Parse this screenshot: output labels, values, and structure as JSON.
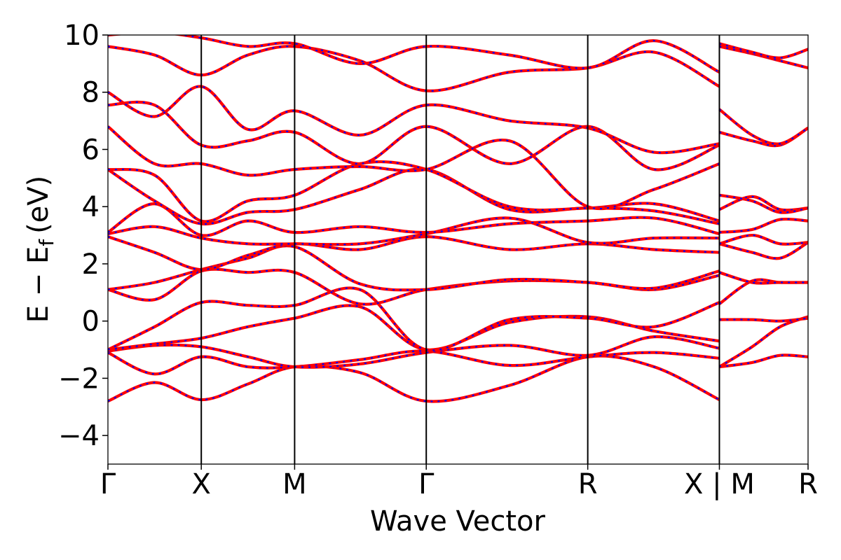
{
  "chart_data": {
    "type": "line",
    "xlabel": "Wave Vector",
    "ylabel": "E − E",
    "ylabel_subscript": "f",
    "ylabel_unit": "(eV)",
    "ylim": [
      -5,
      10
    ],
    "yticks": [
      {
        "value": -4,
        "label": "−4"
      },
      {
        "value": -2,
        "label": "−2"
      },
      {
        "value": 0,
        "label": "0"
      },
      {
        "value": 2,
        "label": "2"
      },
      {
        "value": 4,
        "label": "4"
      },
      {
        "value": 6,
        "label": "6"
      },
      {
        "value": 8,
        "label": "8"
      },
      {
        "value": 10,
        "label": "10"
      }
    ],
    "k_path": {
      "xlim": [
        0,
        7.5
      ],
      "points": [
        {
          "label": "Γ",
          "k": 0.0
        },
        {
          "label": "X",
          "k": 1.0
        },
        {
          "label": "M",
          "k": 2.0
        },
        {
          "label": "Γ",
          "k": 3.41
        },
        {
          "label": "R",
          "k": 5.14
        },
        {
          "label": "X | M",
          "k": 6.55
        },
        {
          "label": "R",
          "k": 7.5
        }
      ]
    },
    "colors": {
      "solid_line": "#ff0000",
      "dashed_line": "#0000ff"
    },
    "series_style": "red solid bands overlaid with blue dashed bands",
    "bands": [
      {
        "k": [
          0,
          0.5,
          1.0,
          1.5,
          2.0,
          2.7,
          3.41,
          4.3,
          5.14,
          5.85,
          6.55
        ],
        "e": [
          -2.8,
          -2.15,
          -2.75,
          -2.2,
          -1.6,
          -1.8,
          -2.8,
          -2.25,
          -1.25,
          -1.6,
          -2.75
        ]
      },
      {
        "k": [
          0,
          0.5,
          1.0,
          1.5,
          2.0,
          2.7,
          3.41,
          4.3,
          5.14,
          5.85,
          6.55
        ],
        "e": [
          -1.1,
          -1.85,
          -1.25,
          -1.6,
          -1.6,
          -1.35,
          -1.05,
          -1.55,
          -1.25,
          -1.1,
          -1.3
        ]
      },
      {
        "k": [
          0,
          0.5,
          1.0,
          1.5,
          2.0,
          2.7,
          3.41,
          4.3,
          5.14,
          5.85,
          6.55
        ],
        "e": [
          -1.05,
          -0.85,
          -0.9,
          -1.25,
          -1.6,
          -1.5,
          -1.1,
          -0.85,
          -1.2,
          -0.55,
          -0.95
        ]
      },
      {
        "k": [
          0,
          0.5,
          1.0,
          1.5,
          2.0,
          2.7,
          3.41,
          4.3,
          5.14,
          5.85,
          6.55
        ],
        "e": [
          -1.0,
          -0.8,
          -0.6,
          -0.2,
          0.1,
          0.5,
          -1.0,
          -0.05,
          0.15,
          -0.35,
          -0.7
        ]
      },
      {
        "k": [
          0,
          0.5,
          1.0,
          1.5,
          2.0,
          2.7,
          3.41,
          4.3,
          5.14,
          5.85,
          6.55
        ],
        "e": [
          -1.0,
          -0.2,
          0.65,
          0.55,
          0.55,
          1.1,
          -1.0,
          0.05,
          0.1,
          -0.2,
          0.65
        ]
      },
      {
        "k": [
          0,
          0.5,
          1.0,
          1.5,
          2.0,
          2.7,
          3.41,
          4.3,
          5.14,
          5.85,
          6.55
        ],
        "e": [
          1.1,
          0.75,
          1.75,
          1.7,
          1.7,
          0.6,
          1.1,
          1.4,
          1.35,
          1.1,
          1.6
        ]
      },
      {
        "k": [
          0,
          0.5,
          1.0,
          1.5,
          2.0,
          2.7,
          3.41,
          4.3,
          5.14,
          5.85,
          6.55
        ],
        "e": [
          1.1,
          1.35,
          1.8,
          2.2,
          2.6,
          1.3,
          1.1,
          1.45,
          1.35,
          1.15,
          1.75
        ]
      },
      {
        "k": [
          0,
          0.5,
          1.0,
          1.5,
          2.0,
          2.7,
          3.41,
          4.3,
          5.14,
          5.85,
          6.55
        ],
        "e": [
          2.95,
          2.4,
          1.8,
          2.3,
          2.7,
          2.5,
          2.95,
          2.5,
          2.7,
          2.5,
          2.4
        ]
      },
      {
        "k": [
          0,
          0.5,
          1.0,
          1.5,
          2.0,
          2.7,
          3.41,
          4.3,
          5.14,
          5.85,
          6.55
        ],
        "e": [
          3.05,
          3.3,
          2.9,
          2.7,
          2.7,
          2.7,
          3.05,
          3.6,
          2.75,
          2.9,
          2.9
        ]
      },
      {
        "k": [
          0,
          0.5,
          1.0,
          1.5,
          2.0,
          2.7,
          3.41,
          4.3,
          5.14,
          5.85,
          6.55
        ],
        "e": [
          3.1,
          4.1,
          3.0,
          3.5,
          3.1,
          3.3,
          3.1,
          3.4,
          3.5,
          3.6,
          3.05
        ]
      },
      {
        "k": [
          0,
          0.5,
          1.0,
          1.5,
          2.0,
          2.7,
          3.41,
          4.3,
          5.14,
          5.85,
          6.55
        ],
        "e": [
          5.3,
          4.2,
          3.4,
          3.8,
          3.9,
          4.6,
          5.3,
          3.9,
          3.95,
          3.85,
          3.4
        ]
      },
      {
        "k": [
          0,
          0.5,
          1.0,
          1.5,
          2.0,
          2.7,
          3.41,
          4.3,
          5.14,
          5.85,
          6.55
        ],
        "e": [
          5.3,
          5.1,
          3.5,
          4.2,
          4.4,
          5.5,
          5.3,
          4.0,
          3.95,
          4.1,
          3.5
        ]
      },
      {
        "k": [
          0,
          0.5,
          1.0,
          1.5,
          2.0,
          2.7,
          3.41,
          4.3,
          5.14,
          5.85,
          6.55
        ],
        "e": [
          6.8,
          5.5,
          5.5,
          5.1,
          5.3,
          5.4,
          5.3,
          6.3,
          4.0,
          4.6,
          5.5
        ]
      },
      {
        "k": [
          0,
          0.5,
          1.0,
          1.5,
          2.0,
          2.7,
          3.41,
          4.3,
          5.14,
          5.85,
          6.55
        ],
        "e": [
          7.55,
          7.55,
          6.15,
          6.3,
          6.6,
          5.5,
          6.8,
          5.5,
          6.8,
          5.3,
          6.15
        ]
      },
      {
        "k": [
          0,
          0.5,
          1.0,
          1.5,
          2.0,
          2.7,
          3.41,
          4.3,
          5.14,
          5.85,
          6.55
        ],
        "e": [
          8.0,
          7.15,
          8.2,
          6.7,
          7.35,
          6.5,
          7.55,
          7.0,
          6.75,
          5.9,
          6.2
        ]
      },
      {
        "k": [
          0,
          0.5,
          1.0,
          1.5,
          2.0,
          2.7,
          3.41,
          4.3,
          5.14,
          5.85,
          6.55
        ],
        "e": [
          9.6,
          9.3,
          8.6,
          9.3,
          9.6,
          9.1,
          8.05,
          8.7,
          8.85,
          9.4,
          8.2
        ]
      },
      {
        "k": [
          0,
          0.5,
          1.0,
          1.5,
          2.0,
          2.7,
          3.41,
          4.3,
          5.14,
          5.85,
          6.55
        ],
        "e": [
          10.0,
          10.1,
          9.9,
          9.6,
          9.7,
          9.0,
          9.6,
          9.3,
          8.85,
          9.8,
          8.7
        ]
      },
      {
        "k": [
          6.55,
          6.9,
          7.2,
          7.5
        ],
        "e": [
          -1.6,
          -1.45,
          -1.2,
          -1.25
        ]
      },
      {
        "k": [
          6.55,
          6.9,
          7.2,
          7.5
        ],
        "e": [
          -1.6,
          -0.9,
          -0.2,
          0.15
        ]
      },
      {
        "k": [
          6.55,
          6.9,
          7.2,
          7.5
        ],
        "e": [
          0.05,
          0.05,
          0.0,
          0.1
        ]
      },
      {
        "k": [
          6.55,
          6.9,
          7.2,
          7.5
        ],
        "e": [
          0.6,
          1.4,
          1.35,
          1.35
        ]
      },
      {
        "k": [
          6.55,
          6.9,
          7.2,
          7.5
        ],
        "e": [
          1.7,
          1.35,
          1.35,
          1.35
        ]
      },
      {
        "k": [
          6.55,
          6.9,
          7.2,
          7.5
        ],
        "e": [
          2.7,
          2.4,
          2.2,
          2.75
        ]
      },
      {
        "k": [
          6.55,
          6.9,
          7.2,
          7.5
        ],
        "e": [
          2.7,
          3.0,
          2.7,
          2.75
        ]
      },
      {
        "k": [
          6.55,
          6.9,
          7.2,
          7.5
        ],
        "e": [
          3.1,
          3.2,
          3.55,
          3.5
        ]
      },
      {
        "k": [
          6.55,
          6.9,
          7.2,
          7.5
        ],
        "e": [
          3.9,
          4.35,
          3.9,
          3.95
        ]
      },
      {
        "k": [
          6.55,
          6.9,
          7.2,
          7.5
        ],
        "e": [
          4.4,
          4.2,
          3.8,
          3.95
        ]
      },
      {
        "k": [
          6.55,
          6.9,
          7.2,
          7.5
        ],
        "e": [
          6.6,
          6.3,
          6.15,
          6.75
        ]
      },
      {
        "k": [
          6.55,
          6.9,
          7.2,
          7.5
        ],
        "e": [
          7.4,
          6.5,
          6.2,
          6.75
        ]
      },
      {
        "k": [
          6.55,
          6.9,
          7.2,
          7.5
        ],
        "e": [
          9.6,
          9.35,
          9.1,
          8.85
        ]
      },
      {
        "k": [
          6.55,
          6.9,
          7.2,
          7.5
        ],
        "e": [
          9.7,
          9.4,
          9.2,
          9.5
        ]
      }
    ]
  }
}
